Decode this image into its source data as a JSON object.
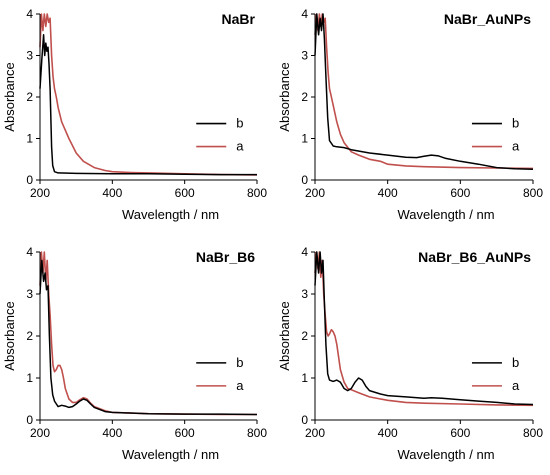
{
  "chart_data": [
    {
      "type": "line",
      "title": "NaBr",
      "xlabel": "Wavelength / nm",
      "ylabel": "Absorbance",
      "xlim": [
        200,
        800
      ],
      "ylim": [
        0,
        4
      ],
      "xticks": [
        "200",
        "400",
        "600",
        "800"
      ],
      "yticks": [
        "0",
        "1",
        "2",
        "3",
        "4"
      ],
      "grid": false,
      "legend_position": "right",
      "series": [
        {
          "name": "b",
          "color": "#000000",
          "x": [
            200,
            205,
            210,
            213,
            216,
            219,
            222,
            225,
            228,
            232,
            235,
            240,
            250,
            300,
            400,
            500,
            600,
            700,
            800
          ],
          "y": [
            2.2,
            2.9,
            3.5,
            3.0,
            3.3,
            3.1,
            3.2,
            2.8,
            2.2,
            0.8,
            0.35,
            0.2,
            0.17,
            0.16,
            0.15,
            0.15,
            0.14,
            0.13,
            0.13
          ]
        },
        {
          "name": "a",
          "color": "#c0504d",
          "x": [
            200,
            204,
            208,
            212,
            216,
            220,
            224,
            228,
            232,
            236,
            240,
            245,
            250,
            260,
            280,
            300,
            320,
            350,
            380,
            400,
            450,
            500,
            600,
            700,
            800
          ],
          "y": [
            3.2,
            4.0,
            3.6,
            4.0,
            3.7,
            4.0,
            3.8,
            3.9,
            3.0,
            2.5,
            2.2,
            2.0,
            1.75,
            1.4,
            1.0,
            0.65,
            0.45,
            0.3,
            0.23,
            0.2,
            0.18,
            0.17,
            0.15,
            0.13,
            0.12
          ]
        }
      ]
    },
    {
      "type": "line",
      "title": "NaBr_AuNPs",
      "xlabel": "Wavelength / nm",
      "ylabel": "Absorbance",
      "xlim": [
        200,
        800
      ],
      "ylim": [
        0,
        4
      ],
      "xticks": [
        "200",
        "400",
        "600",
        "800"
      ],
      "yticks": [
        "0",
        "1",
        "2",
        "3",
        "4"
      ],
      "grid": false,
      "legend_position": "right",
      "series": [
        {
          "name": "b",
          "color": "#000000",
          "x": [
            200,
            205,
            210,
            214,
            218,
            222,
            226,
            230,
            235,
            240,
            250,
            260,
            280,
            300,
            350,
            400,
            450,
            480,
            500,
            520,
            540,
            560,
            600,
            650,
            700,
            750,
            800
          ],
          "y": [
            3.0,
            4.0,
            3.5,
            3.9,
            3.6,
            4.0,
            3.4,
            2.5,
            1.5,
            0.95,
            0.82,
            0.8,
            0.78,
            0.73,
            0.65,
            0.6,
            0.55,
            0.54,
            0.57,
            0.6,
            0.58,
            0.52,
            0.45,
            0.38,
            0.3,
            0.27,
            0.26
          ]
        },
        {
          "name": "a",
          "color": "#c0504d",
          "x": [
            200,
            204,
            208,
            212,
            216,
            220,
            224,
            228,
            232,
            236,
            240,
            245,
            250,
            260,
            270,
            280,
            300,
            320,
            350,
            380,
            400,
            450,
            500,
            600,
            700,
            800
          ],
          "y": [
            3.5,
            4.0,
            3.6,
            4.0,
            3.7,
            4.0,
            3.8,
            3.9,
            3.2,
            2.6,
            2.2,
            2.0,
            1.8,
            1.4,
            1.1,
            0.9,
            0.68,
            0.6,
            0.5,
            0.45,
            0.38,
            0.34,
            0.32,
            0.3,
            0.29,
            0.28
          ]
        }
      ]
    },
    {
      "type": "line",
      "title": "NaBr_B6",
      "xlabel": "Wavelength / nm",
      "ylabel": "Absorbance",
      "xlim": [
        200,
        800
      ],
      "ylim": [
        0,
        4
      ],
      "xticks": [
        "200",
        "400",
        "600",
        "800"
      ],
      "yticks": [
        "0",
        "1",
        "2",
        "3",
        "4"
      ],
      "grid": false,
      "legend_position": "right",
      "series": [
        {
          "name": "b",
          "color": "#000000",
          "x": [
            200,
            205,
            210,
            214,
            218,
            222,
            226,
            230,
            235,
            240,
            250,
            260,
            270,
            280,
            290,
            300,
            310,
            320,
            330,
            340,
            350,
            380,
            400,
            500,
            600,
            700,
            800
          ],
          "y": [
            3.0,
            3.8,
            3.3,
            3.5,
            3.1,
            3.2,
            2.0,
            1.0,
            0.6,
            0.45,
            0.32,
            0.35,
            0.33,
            0.3,
            0.32,
            0.38,
            0.45,
            0.5,
            0.47,
            0.38,
            0.3,
            0.2,
            0.18,
            0.15,
            0.14,
            0.14,
            0.13
          ]
        },
        {
          "name": "a",
          "color": "#c0504d",
          "x": [
            200,
            204,
            208,
            212,
            216,
            220,
            224,
            228,
            232,
            236,
            240,
            245,
            250,
            255,
            260,
            265,
            270,
            280,
            290,
            300,
            310,
            320,
            330,
            340,
            350,
            380,
            400,
            500,
            600,
            700,
            800
          ],
          "y": [
            3.2,
            4.0,
            3.5,
            4.0,
            3.3,
            3.8,
            3.0,
            2.5,
            1.8,
            1.3,
            1.15,
            1.2,
            1.3,
            1.3,
            1.2,
            1.0,
            0.75,
            0.5,
            0.42,
            0.42,
            0.48,
            0.53,
            0.5,
            0.4,
            0.32,
            0.22,
            0.18,
            0.15,
            0.14,
            0.13,
            0.13
          ]
        }
      ]
    },
    {
      "type": "line",
      "title": "NaBr_B6_AuNPs",
      "xlabel": "Wavelength / nm",
      "ylabel": "Absorbance",
      "xlim": [
        200,
        800
      ],
      "ylim": [
        0,
        4
      ],
      "xticks": [
        "200",
        "400",
        "600",
        "800"
      ],
      "yticks": [
        "0",
        "1",
        "2",
        "3",
        "4"
      ],
      "grid": false,
      "legend_position": "right",
      "series": [
        {
          "name": "b",
          "color": "#000000",
          "x": [
            200,
            205,
            210,
            214,
            218,
            222,
            226,
            230,
            235,
            240,
            250,
            260,
            270,
            280,
            290,
            300,
            310,
            320,
            330,
            340,
            350,
            380,
            400,
            450,
            500,
            520,
            550,
            600,
            650,
            700,
            750,
            800
          ],
          "y": [
            3.2,
            4.0,
            3.5,
            4.0,
            3.5,
            3.8,
            2.8,
            1.8,
            1.1,
            0.95,
            0.92,
            0.95,
            0.9,
            0.75,
            0.7,
            0.75,
            0.9,
            1.0,
            0.95,
            0.8,
            0.7,
            0.62,
            0.58,
            0.55,
            0.52,
            0.53,
            0.52,
            0.48,
            0.45,
            0.42,
            0.38,
            0.37
          ]
        },
        {
          "name": "a",
          "color": "#c0504d",
          "x": [
            200,
            204,
            208,
            212,
            216,
            220,
            224,
            228,
            232,
            236,
            240,
            245,
            250,
            255,
            260,
            265,
            270,
            280,
            290,
            300,
            320,
            350,
            380,
            400,
            450,
            500,
            600,
            700,
            800
          ],
          "y": [
            3.5,
            4.0,
            3.6,
            4.0,
            3.4,
            3.8,
            3.0,
            2.5,
            2.1,
            2.0,
            2.05,
            2.15,
            2.1,
            2.0,
            1.8,
            1.5,
            1.2,
            0.9,
            0.75,
            0.72,
            0.65,
            0.55,
            0.5,
            0.47,
            0.42,
            0.4,
            0.38,
            0.36,
            0.35
          ]
        }
      ]
    }
  ]
}
